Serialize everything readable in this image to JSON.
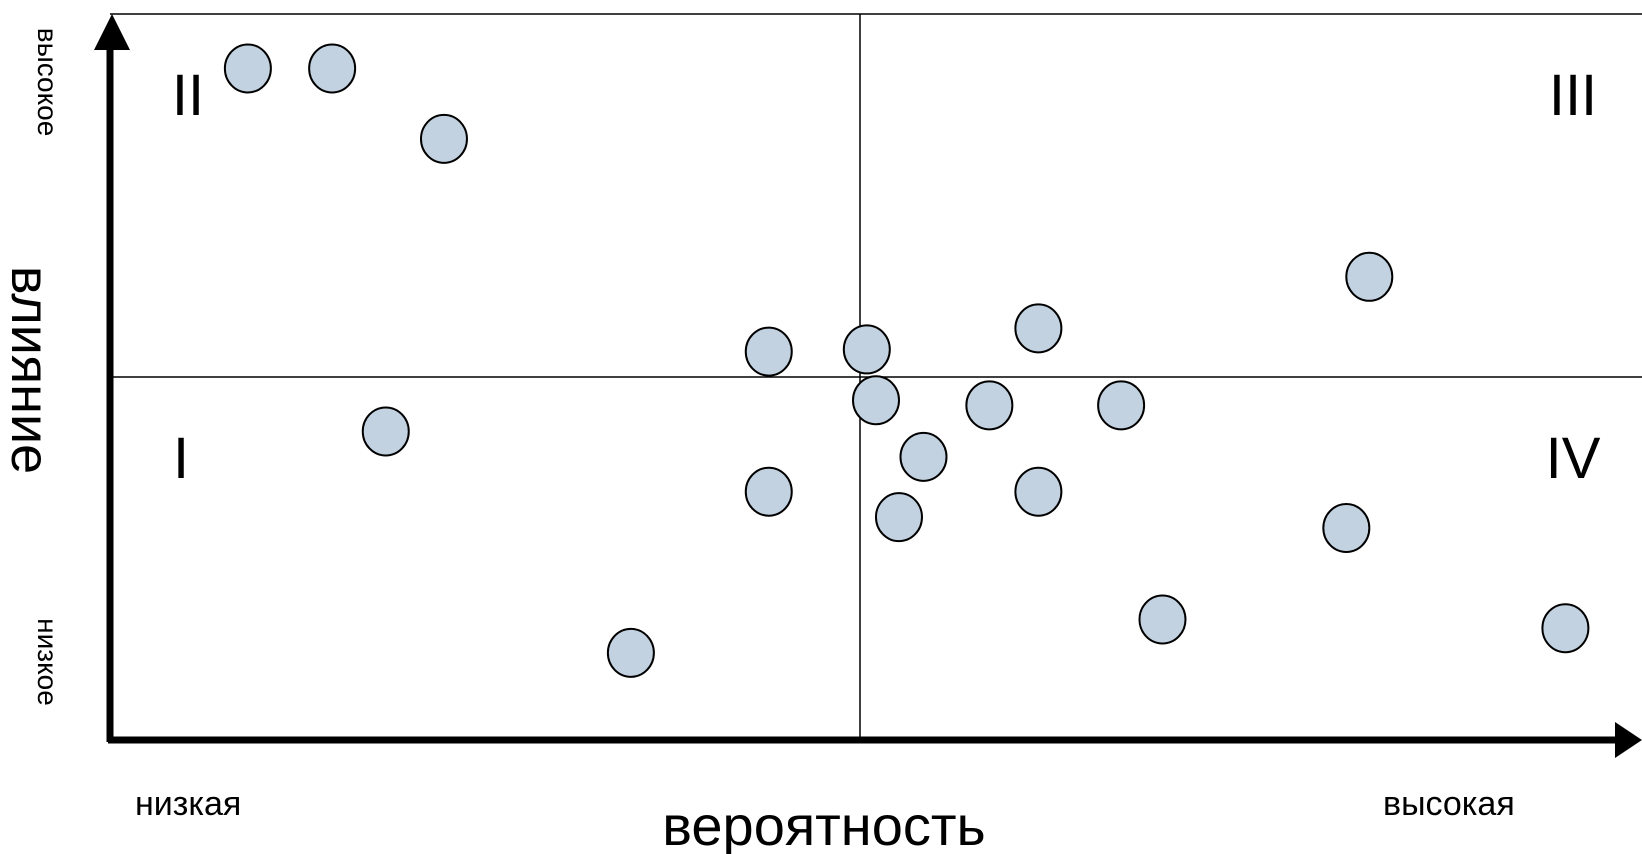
{
  "axes": {
    "x_title": "вероятность",
    "x_low": "низкая",
    "x_high": "высокая",
    "y_title": "влияние",
    "y_low": "низкое",
    "y_high": "высокое"
  },
  "quadrants": {
    "q1": "I",
    "q2": "II",
    "q3": "III",
    "q4": "IV"
  },
  "colors": {
    "point_fill": "#c3d2e0",
    "point_stroke": "#000000",
    "line": "#000000"
  },
  "chart_data": {
    "type": "scatter",
    "xlim": [
      0,
      1
    ],
    "ylim": [
      0,
      1
    ],
    "dividers": {
      "x": 0.5,
      "y": 0.5
    },
    "points": [
      {
        "x": 0.09,
        "y": 0.925
      },
      {
        "x": 0.145,
        "y": 0.925
      },
      {
        "x": 0.218,
        "y": 0.828
      },
      {
        "x": 0.18,
        "y": 0.425
      },
      {
        "x": 0.34,
        "y": 0.12
      },
      {
        "x": 0.43,
        "y": 0.535
      },
      {
        "x": 0.43,
        "y": 0.342
      },
      {
        "x": 0.494,
        "y": 0.538
      },
      {
        "x": 0.5,
        "y": 0.468
      },
      {
        "x": 0.515,
        "y": 0.307
      },
      {
        "x": 0.531,
        "y": 0.39
      },
      {
        "x": 0.574,
        "y": 0.461
      },
      {
        "x": 0.606,
        "y": 0.567
      },
      {
        "x": 0.606,
        "y": 0.342
      },
      {
        "x": 0.66,
        "y": 0.461
      },
      {
        "x": 0.687,
        "y": 0.166
      },
      {
        "x": 0.822,
        "y": 0.638
      },
      {
        "x": 0.807,
        "y": 0.292
      },
      {
        "x": 0.95,
        "y": 0.154
      }
    ]
  }
}
